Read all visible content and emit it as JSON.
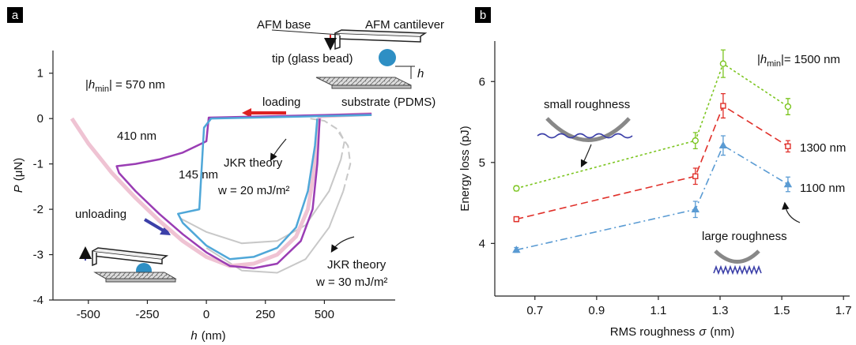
{
  "chart_data": [
    {
      "type": "line",
      "panel": "a",
      "xlabel": {
        "var": "h",
        "unit": "(nm)"
      },
      "ylabel": {
        "var": "P",
        "unit": "(μN)"
      },
      "xlim": [
        -650,
        800
      ],
      "ylim": [
        -4,
        1.5
      ],
      "xticks": [
        -500,
        -250,
        0,
        250,
        500
      ],
      "yticks": [
        -4,
        -3,
        -2,
        -1,
        0,
        1
      ],
      "hmin_label": {
        "open": "|",
        "var": "h",
        "sub": "min",
        "close": "| ="
      },
      "series": [
        {
          "name": "570 nm",
          "color": "#efc3d3",
          "x": [
            700,
            480,
            470,
            455,
            430,
            380,
            300,
            200,
            100,
            0,
            -100,
            -200,
            -300,
            -400,
            -500,
            -570
          ],
          "values": [
            0.1,
            0.05,
            -0.3,
            -1.2,
            -2.0,
            -2.6,
            -3.0,
            -3.2,
            -3.25,
            -3.05,
            -2.7,
            -2.25,
            -1.75,
            -1.2,
            -0.55,
            0
          ]
        },
        {
          "name": "410 nm",
          "color": "#9a3db4",
          "x": [
            700,
            10,
            0,
            -100,
            -200,
            -300,
            -380,
            -370,
            -300,
            -200,
            -100,
            0,
            100,
            200,
            300,
            400,
            450,
            470,
            480
          ],
          "values": [
            0.1,
            0.02,
            -0.5,
            -0.75,
            -0.9,
            -1.0,
            -1.05,
            -1.2,
            -1.6,
            -2.1,
            -2.55,
            -2.95,
            -3.25,
            -3.3,
            -3.2,
            -2.7,
            -2.0,
            -1.0,
            0.0
          ]
        },
        {
          "name": "145 nm",
          "color": "#4fa7d8",
          "x": [
            700,
            20,
            -10,
            -30,
            -120,
            -100,
            -50,
            0,
            100,
            200,
            300,
            380,
            430,
            460,
            470
          ],
          "values": [
            0.08,
            0.0,
            -0.2,
            -2.0,
            -2.1,
            -2.3,
            -2.55,
            -2.8,
            -3.1,
            -3.05,
            -2.85,
            -2.4,
            -1.6,
            -0.6,
            0.0
          ]
        }
      ],
      "theory_curves": [
        {
          "color": "#c8c8c8",
          "dash": "solid",
          "x": [
            -110,
            0,
            150,
            300,
            420,
            520,
            570
          ],
          "values": [
            -2.2,
            -2.5,
            -2.75,
            -2.7,
            -2.35,
            -1.6,
            -0.9
          ]
        },
        {
          "color": "#c8c8c8",
          "dash": "dashed",
          "x": [
            570,
            585,
            560,
            500,
            440
          ],
          "values": [
            -0.9,
            -0.5,
            -0.25,
            -0.05,
            0.0
          ]
        },
        {
          "color": "#c8c8c8",
          "dash": "solid",
          "x": [
            0,
            150,
            300,
            420,
            520,
            580
          ],
          "values": [
            -2.85,
            -3.35,
            -3.4,
            -3.1,
            -2.4,
            -1.6
          ]
        },
        {
          "color": "#c8c8c8",
          "dash": "dashed",
          "x": [
            580,
            610,
            600,
            560
          ],
          "values": [
            -1.6,
            -1.0,
            -0.6,
            -0.3
          ]
        }
      ]
    },
    {
      "type": "line",
      "panel": "b",
      "xlabel": {
        "text": "RMS roughness",
        "var": "σ",
        "unit": "(nm)"
      },
      "ylabel": {
        "text": "Energy loss  (pJ)"
      },
      "xlim": [
        0.57,
        1.72
      ],
      "ylim": [
        3.35,
        6.5
      ],
      "xticks": [
        0.7,
        0.9,
        1.1,
        1.3,
        1.5,
        1.7
      ],
      "yticks": [
        4,
        5,
        6
      ],
      "hmin_label": {
        "open": "|",
        "var": "h",
        "sub": "min",
        "close": "|="
      },
      "x": [
        0.64,
        1.22,
        1.31,
        1.52
      ],
      "series": [
        {
          "name": "1500 nm",
          "color": "#7cc520",
          "marker": "circle",
          "dash": "dotted",
          "values": [
            4.68,
            5.27,
            6.22,
            5.69
          ],
          "errors": [
            0.03,
            0.1,
            0.17,
            0.1
          ]
        },
        {
          "name": "1300 nm",
          "color": "#e0302a",
          "marker": "square",
          "dash": "dashed",
          "values": [
            4.3,
            4.83,
            5.7,
            5.2
          ],
          "errors": [
            0.03,
            0.1,
            0.15,
            0.07
          ]
        },
        {
          "name": "1100 nm",
          "color": "#5a9bd3",
          "marker": "triangle",
          "dash": "dashdot",
          "values": [
            3.92,
            4.42,
            5.21,
            4.73
          ],
          "errors": [
            0.03,
            0.1,
            0.12,
            0.09
          ]
        }
      ]
    }
  ],
  "annotations": {
    "loading": "loading",
    "unloading": "unloading",
    "afm_base": "AFM base",
    "afm_cantilever": "AFM cantilever",
    "tip": "tip (glass bead)",
    "h": "h",
    "substrate": "substrate (PDMS)",
    "jkr20": [
      "JKR theory",
      "w = 20 mJ/m²"
    ],
    "jkr30": [
      "JKR theory",
      "w = 30 mJ/m²"
    ],
    "small": "small roughness",
    "large": "large roughness"
  }
}
